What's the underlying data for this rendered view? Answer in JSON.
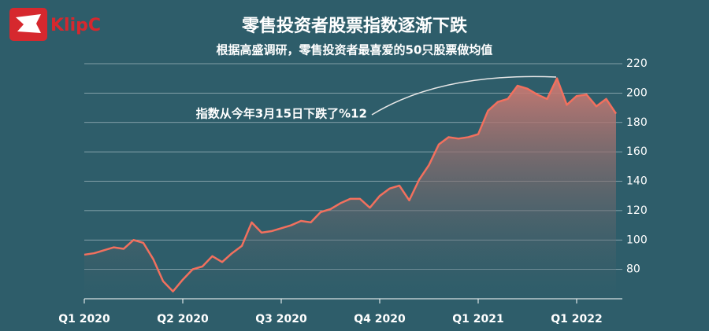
{
  "logo": "KlipC",
  "chart_data": {
    "type": "line",
    "title": "零售投资者股票指数逐渐下跌",
    "subtitle": "根据高盛调研，零售投资者最喜爱的50只股票做均值",
    "annotation": "指数从今年3月15日下跌了%12",
    "categories": [
      "Q1 2020",
      null,
      null,
      null,
      null,
      null,
      null,
      null,
      null,
      null,
      "Q2 2020",
      null,
      null,
      null,
      null,
      null,
      null,
      null,
      null,
      null,
      "Q3 2020",
      null,
      null,
      null,
      null,
      null,
      null,
      null,
      null,
      null,
      "Q4 2020",
      null,
      null,
      null,
      null,
      null,
      null,
      null,
      null,
      null,
      "Q1 2021",
      null,
      null,
      null,
      null,
      null,
      null,
      null,
      null,
      null,
      "Q1 2022",
      null,
      null,
      null,
      null
    ],
    "values": [
      90,
      91,
      93,
      95,
      94,
      100,
      98,
      87,
      72,
      65,
      73,
      80,
      82,
      89,
      85,
      91,
      96,
      112,
      105,
      106,
      108,
      110,
      113,
      112,
      119,
      121,
      125,
      128,
      128,
      122,
      130,
      135,
      137,
      127,
      141,
      151,
      165,
      170,
      169,
      170,
      172,
      188,
      194,
      196,
      205,
      203,
      199,
      196,
      210,
      192,
      198,
      199,
      191,
      196,
      186
    ],
    "color": "#f2705e",
    "ylim": [
      60,
      220
    ],
    "yticks": [
      80,
      100,
      120,
      140,
      160,
      180,
      200,
      220
    ],
    "grid": true
  }
}
